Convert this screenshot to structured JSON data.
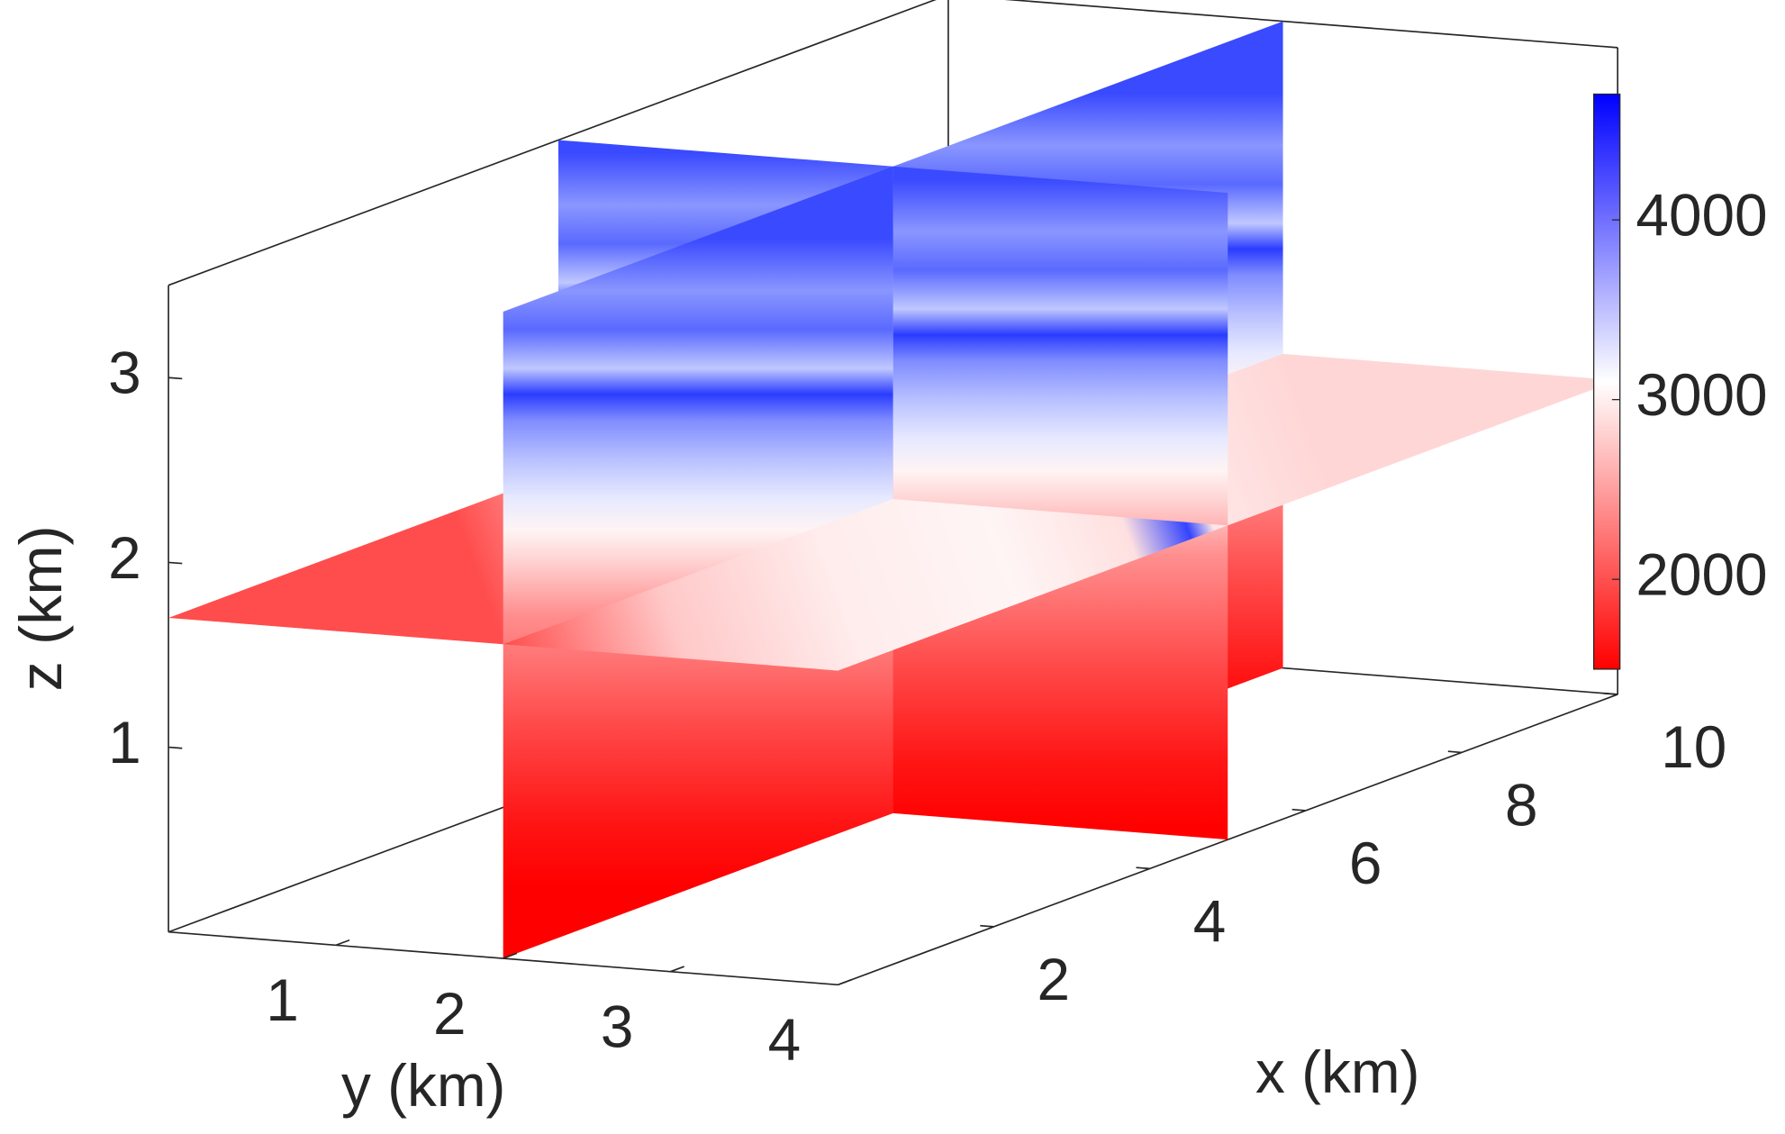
{
  "chart_data": {
    "type": "slice3d",
    "xlabel": "x (km)",
    "ylabel": "y (km)",
    "zlabel": "z (km)",
    "xlim": [
      0,
      10
    ],
    "ylim": [
      0,
      4
    ],
    "zlim": [
      0,
      3.5
    ],
    "xticks": [
      2,
      4,
      6,
      8,
      10
    ],
    "yticks": [
      1,
      2,
      3,
      4
    ],
    "zticks": [
      1,
      2,
      3
    ],
    "slices": {
      "x": [
        5
      ],
      "y": [
        2
      ],
      "z": [
        1.7
      ]
    },
    "colorbar": {
      "clim": [
        1500,
        4700
      ],
      "ticks": [
        2000,
        3000,
        4000
      ],
      "colormap": [
        "#ff0000",
        "#ffffff",
        "#0000ff"
      ]
    }
  }
}
